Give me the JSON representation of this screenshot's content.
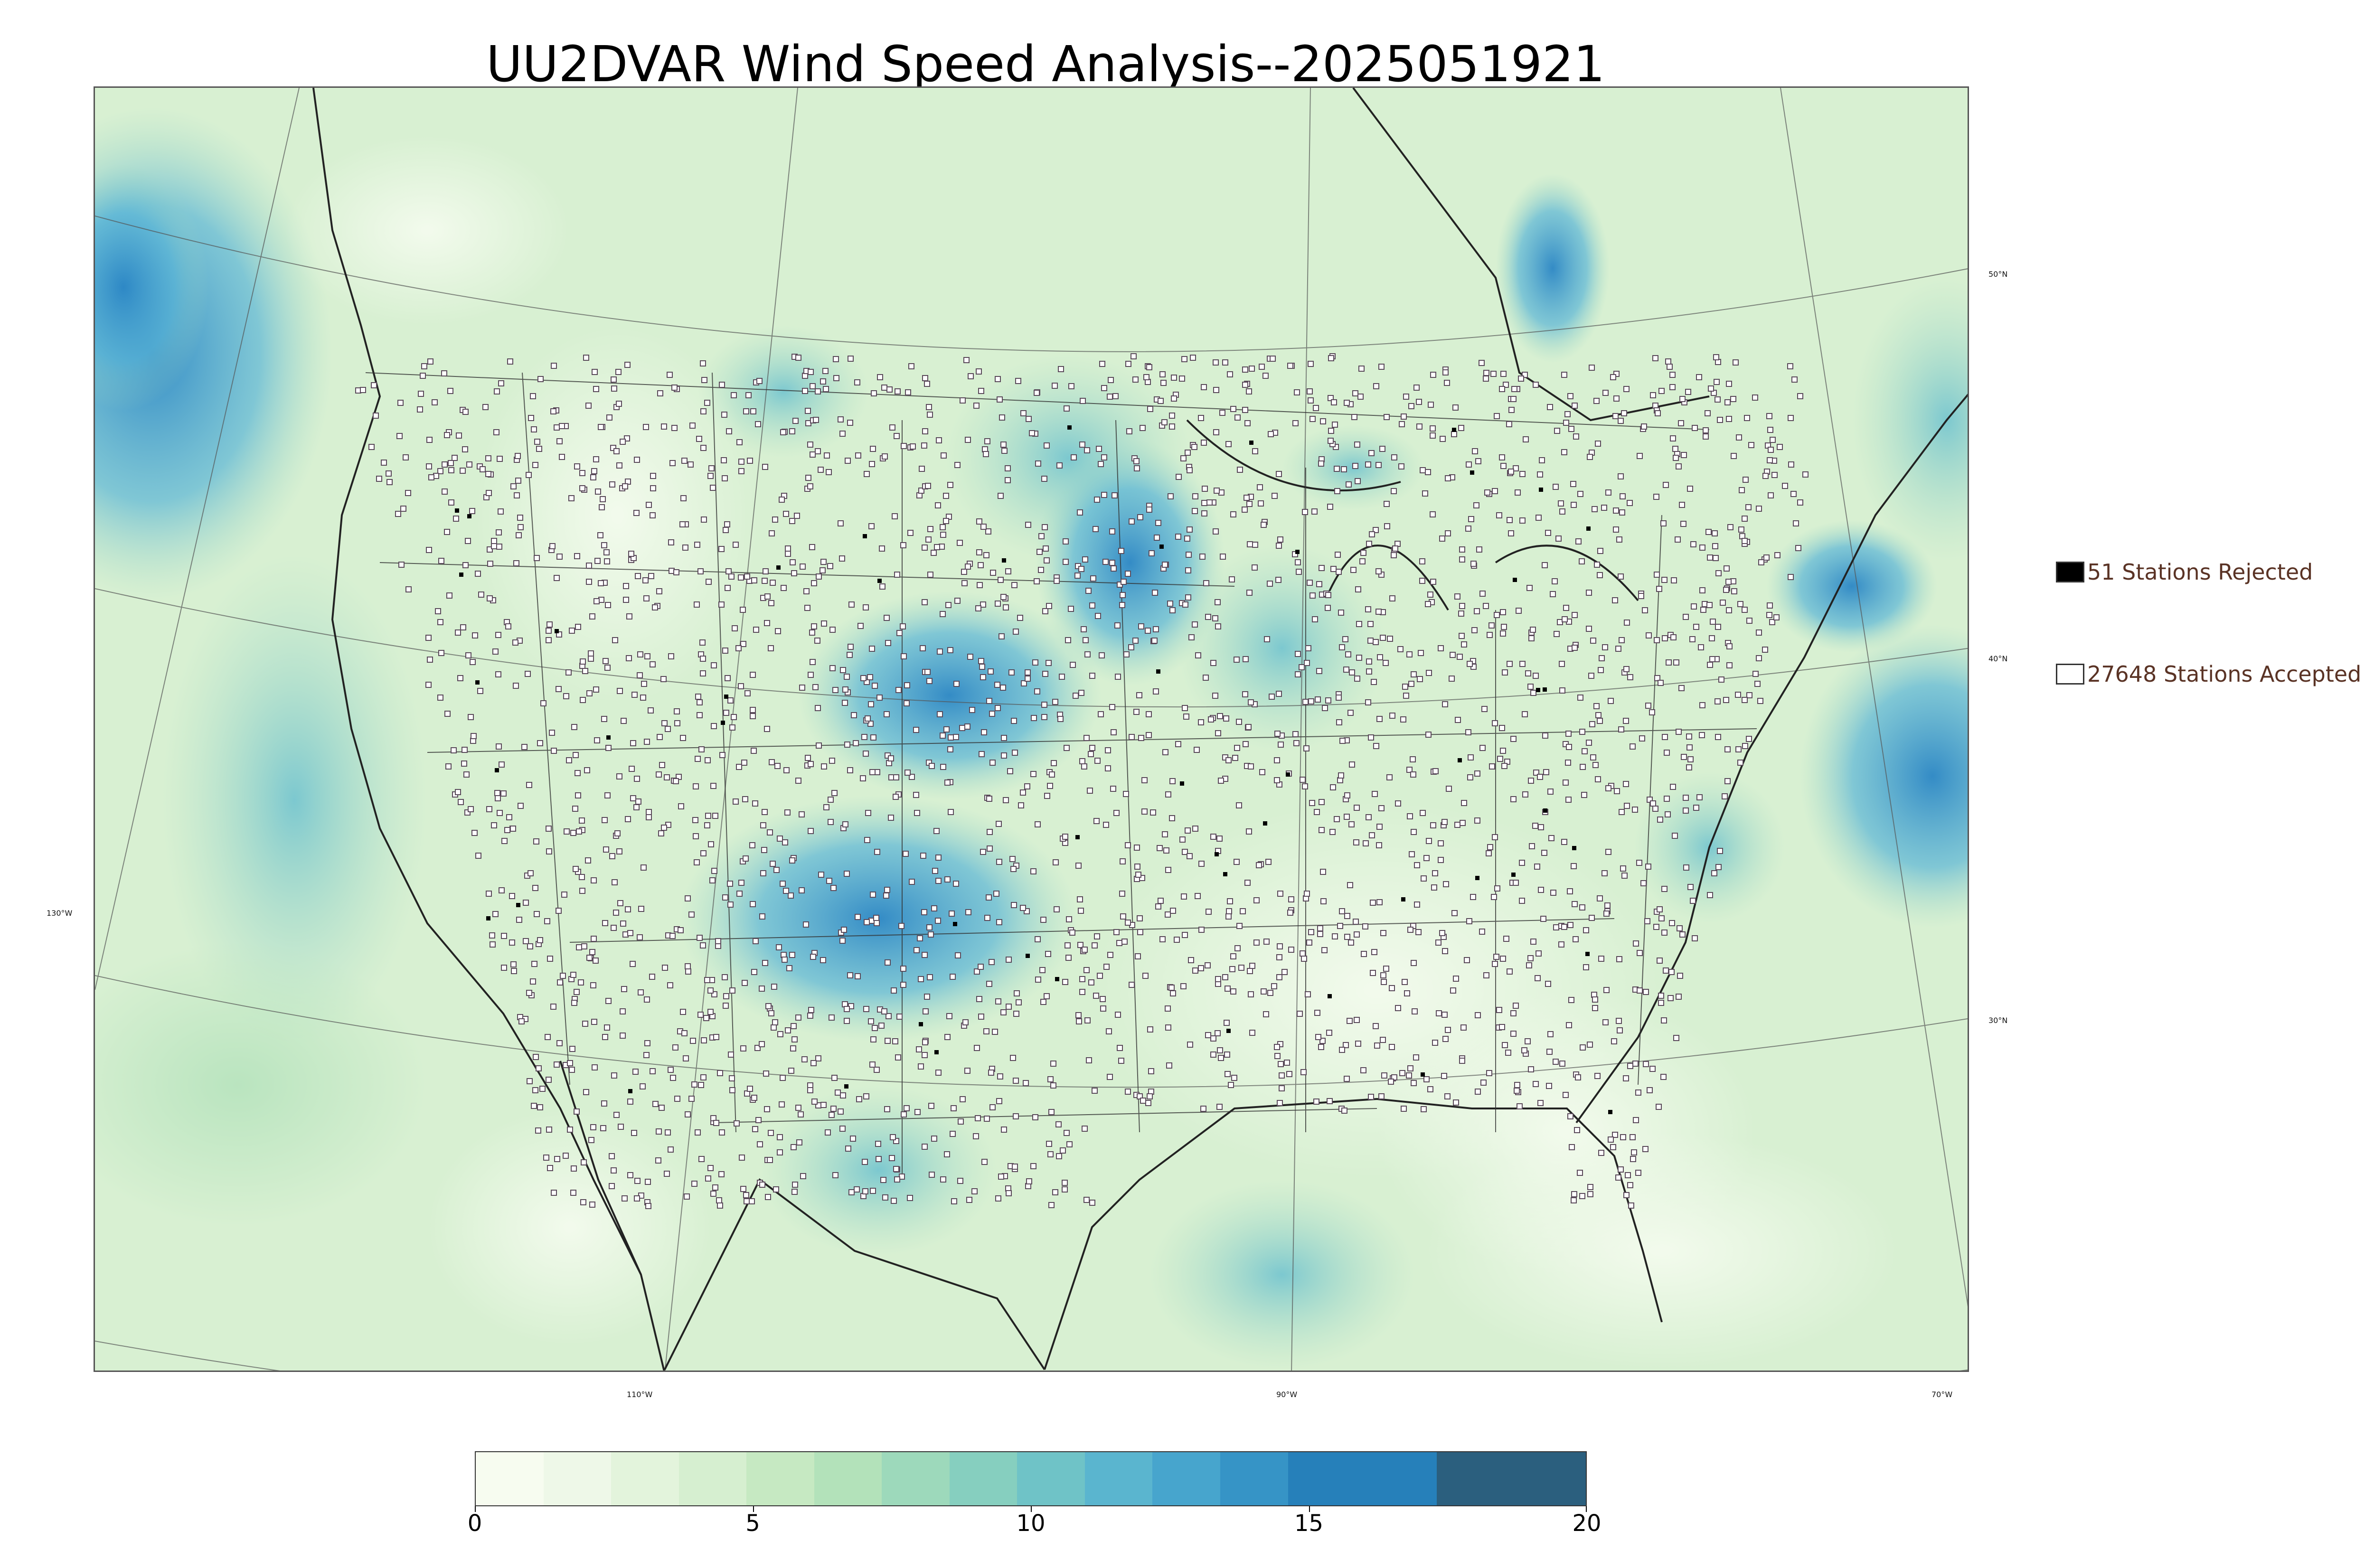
{
  "title": "UU2DVAR Wind Speed Analysis--2025051921",
  "map": {
    "latitude_labels": [
      "50°N",
      "40°N",
      "30°N"
    ],
    "longitude_labels": [
      "130°W",
      "110°W",
      "90°W",
      "70°W"
    ],
    "colormap_low": "#f7fcf0",
    "colormap_high": "#084081",
    "rejected_station_color": "#000000",
    "accepted_station_color": "#ffffff"
  },
  "legend": {
    "rejected": {
      "label": "51 Stations Rejected",
      "count": 51
    },
    "accepted": {
      "label": "27648 Stations Accepted",
      "count": 27648
    }
  },
  "colorbar": {
    "min": 0,
    "max": 20,
    "ticks": [
      "0",
      "5",
      "10",
      "15",
      "20"
    ],
    "colors": [
      "#f7fcf0",
      "#eef8e8",
      "#e3f4dc",
      "#d6efd0",
      "#c6e9c2",
      "#b3e2ba",
      "#9dd9bb",
      "#86cfbf",
      "#6fc3c7",
      "#5ab5cf",
      "#47a5cd",
      "#3694c6",
      "#2680ba",
      "#2b5f7e"
    ]
  }
}
